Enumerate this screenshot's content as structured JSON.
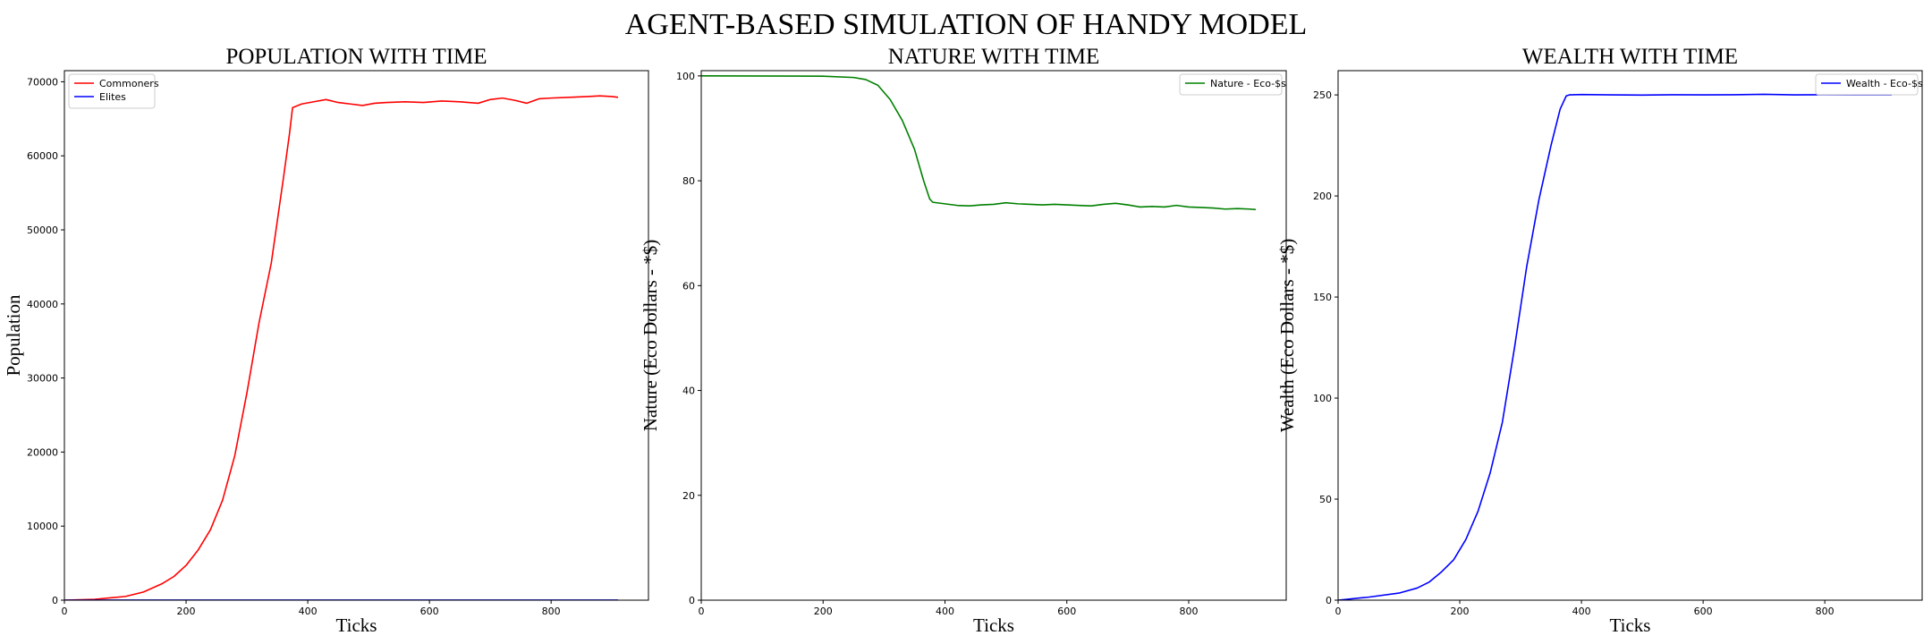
{
  "title": "AGENT-BASED SIMULATION OF HANDY MODEL",
  "colors": {
    "commoners": "#ff0000",
    "elites": "#0000ff",
    "nature": "#008000",
    "wealth": "#0000ff"
  },
  "chart_data": [
    {
      "type": "line",
      "title": "POPULATION WITH TIME",
      "xlabel": "Ticks",
      "ylabel": "Population",
      "xlim": [
        0,
        960
      ],
      "ylim": [
        0,
        71500
      ],
      "xticks": [
        0,
        200,
        400,
        600,
        800
      ],
      "yticks": [
        0,
        10000,
        20000,
        30000,
        40000,
        50000,
        60000,
        70000
      ],
      "legend_loc": "upper-left",
      "series": [
        {
          "name": "Commoners",
          "color": "#ff0000",
          "points": [
            [
              0,
              0
            ],
            [
              50,
              120
            ],
            [
              100,
              500
            ],
            [
              130,
              1100
            ],
            [
              160,
              2200
            ],
            [
              180,
              3200
            ],
            [
              200,
              4700
            ],
            [
              220,
              6800
            ],
            [
              240,
              9500
            ],
            [
              260,
              13500
            ],
            [
              280,
              19500
            ],
            [
              300,
              28000
            ],
            [
              320,
              37500
            ],
            [
              340,
              45500
            ],
            [
              360,
              57000
            ],
            [
              370,
              63000
            ],
            [
              375,
              66500
            ],
            [
              390,
              67000
            ],
            [
              410,
              67300
            ],
            [
              430,
              67600
            ],
            [
              450,
              67200
            ],
            [
              470,
              67000
            ],
            [
              490,
              66800
            ],
            [
              510,
              67100
            ],
            [
              530,
              67200
            ],
            [
              560,
              67300
            ],
            [
              590,
              67200
            ],
            [
              620,
              67400
            ],
            [
              650,
              67300
            ],
            [
              680,
              67100
            ],
            [
              700,
              67600
            ],
            [
              720,
              67800
            ],
            [
              740,
              67500
            ],
            [
              760,
              67100
            ],
            [
              780,
              67700
            ],
            [
              800,
              67800
            ],
            [
              830,
              67900
            ],
            [
              860,
              68000
            ],
            [
              880,
              68100
            ],
            [
              900,
              68000
            ],
            [
              910,
              67900
            ]
          ]
        },
        {
          "name": "Elites",
          "color": "#0000ff",
          "points": [
            [
              0,
              0
            ],
            [
              200,
              10
            ],
            [
              400,
              15
            ],
            [
              600,
              15
            ],
            [
              800,
              15
            ],
            [
              910,
              15
            ]
          ]
        }
      ]
    },
    {
      "type": "line",
      "title": "NATURE WITH TIME",
      "xlabel": "Ticks",
      "ylabel": "Nature (Eco Dollars - *$)",
      "xlim": [
        0,
        960
      ],
      "ylim": [
        0,
        101
      ],
      "xticks": [
        0,
        200,
        400,
        600,
        800
      ],
      "yticks": [
        0,
        20,
        40,
        60,
        80,
        100
      ],
      "legend_loc": "upper-right",
      "series": [
        {
          "name": "Nature - Eco-$s",
          "color": "#008000",
          "points": [
            [
              0,
              100
            ],
            [
              200,
              99.95
            ],
            [
              250,
              99.7
            ],
            [
              270,
              99.3
            ],
            [
              290,
              98.2
            ],
            [
              310,
              95.5
            ],
            [
              330,
              91.5
            ],
            [
              350,
              86
            ],
            [
              365,
              80
            ],
            [
              375,
              76.5
            ],
            [
              380,
              75.9
            ],
            [
              400,
              75.6
            ],
            [
              420,
              75.3
            ],
            [
              440,
              75.2
            ],
            [
              460,
              75.4
            ],
            [
              480,
              75.5
            ],
            [
              500,
              75.8
            ],
            [
              520,
              75.6
            ],
            [
              540,
              75.5
            ],
            [
              560,
              75.4
            ],
            [
              580,
              75.5
            ],
            [
              600,
              75.4
            ],
            [
              620,
              75.3
            ],
            [
              640,
              75.2
            ],
            [
              660,
              75.5
            ],
            [
              680,
              75.7
            ],
            [
              700,
              75.4
            ],
            [
              720,
              75.0
            ],
            [
              740,
              75.1
            ],
            [
              760,
              75.0
            ],
            [
              780,
              75.3
            ],
            [
              800,
              75.0
            ],
            [
              820,
              74.9
            ],
            [
              840,
              74.8
            ],
            [
              860,
              74.6
            ],
            [
              880,
              74.7
            ],
            [
              900,
              74.6
            ],
            [
              910,
              74.5
            ]
          ]
        }
      ]
    },
    {
      "type": "line",
      "title": "WEALTH WITH TIME",
      "xlabel": "Ticks",
      "ylabel": "Wealth (Eco Dollars - *$)",
      "xlim": [
        0,
        960
      ],
      "ylim": [
        0,
        262
      ],
      "xticks": [
        0,
        200,
        400,
        600,
        800
      ],
      "yticks": [
        0,
        50,
        100,
        150,
        200,
        250
      ],
      "legend_loc": "upper-right",
      "series": [
        {
          "name": "Wealth - Eco-$s",
          "color": "#0000ff",
          "points": [
            [
              0,
              0
            ],
            [
              50,
              1.5
            ],
            [
              100,
              3.5
            ],
            [
              130,
              6
            ],
            [
              150,
              9
            ],
            [
              170,
              14
            ],
            [
              190,
              20
            ],
            [
              210,
              30
            ],
            [
              230,
              44
            ],
            [
              250,
              63
            ],
            [
              270,
              88
            ],
            [
              290,
              125
            ],
            [
              310,
              165
            ],
            [
              330,
              198
            ],
            [
              350,
              225
            ],
            [
              365,
              243
            ],
            [
              375,
              249.5
            ],
            [
              380,
              250
            ],
            [
              400,
              250.2
            ],
            [
              450,
              250
            ],
            [
              500,
              249.9
            ],
            [
              550,
              250.1
            ],
            [
              600,
              250
            ],
            [
              650,
              250.1
            ],
            [
              700,
              250.3
            ],
            [
              750,
              250
            ],
            [
              800,
              250.1
            ],
            [
              850,
              250
            ],
            [
              900,
              250.1
            ],
            [
              910,
              250
            ]
          ]
        }
      ]
    }
  ]
}
